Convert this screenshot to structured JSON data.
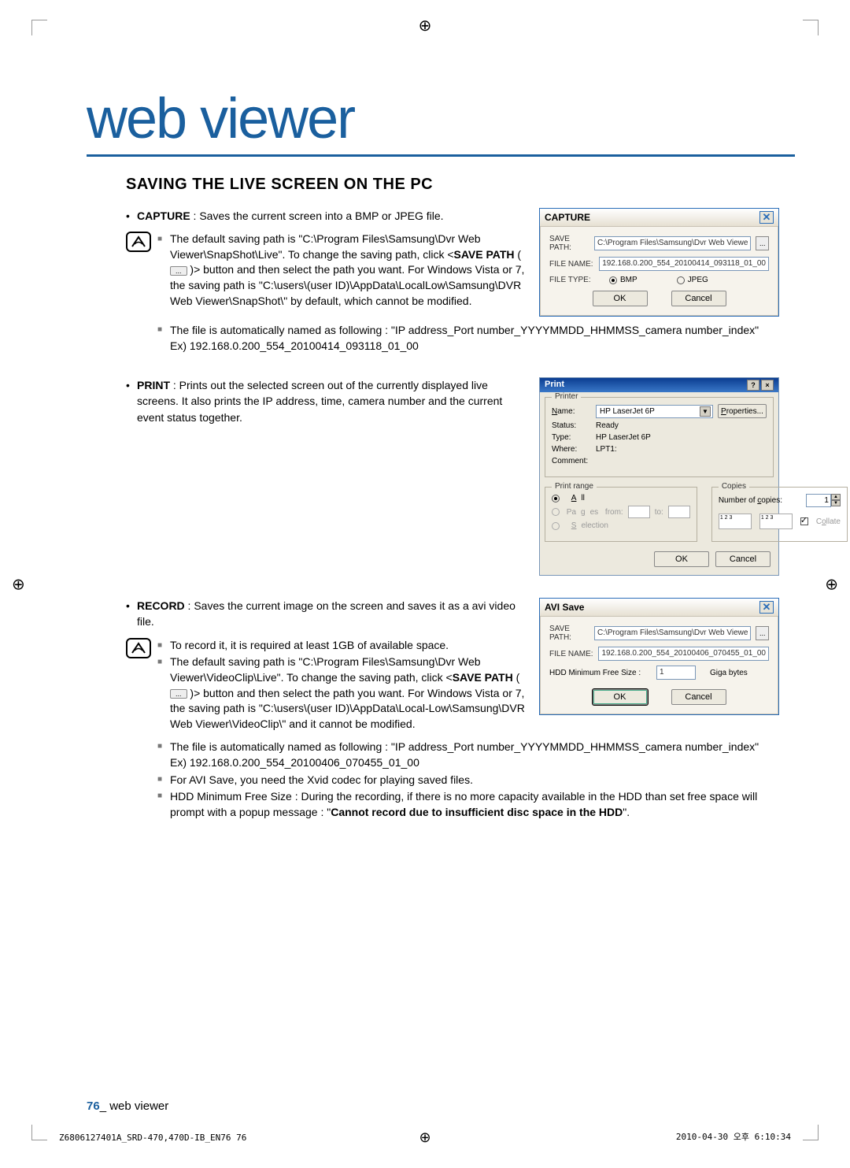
{
  "page": {
    "main_title": "web viewer",
    "section_title": "SAVING THE LIVE SCREEN ON THE PC",
    "footer_num": "76",
    "footer_suffix": "_",
    "footer_text": "web viewer",
    "meta_left": "Z6806127401A_SRD-470,470D-IB_EN76   76",
    "meta_right": "2010-04-30   오후 6:10:34"
  },
  "capture": {
    "bullet_label": "CAPTURE",
    "bullet_text": " : Saves the current screen into a BMP or JPEG file.",
    "note1_a": "The default saving path is \"C:\\Program Files\\Samsung\\Dvr Web Viewer\\SnapShot\\Live\". To change the saving path, click <",
    "note1_bold": "SAVE PATH",
    "note1_b": " ( ",
    "note1_btn": "...",
    "note1_c": " )> button and then select the path you want. For Windows Vista or 7, the saving path is \"C:\\users\\(user ID)\\AppData\\LocalLow\\Samsung\\DVR Web Viewer\\SnapShot\\\" by default, which cannot be modified.",
    "note2": "The file is automatically named as following : \"IP address_Port number_YYYYMMDD_HHMMSS_camera number_index\"",
    "note2_ex": "Ex) 192.168.0.200_554_20100414_093118_01_00",
    "dialog": {
      "title": "CAPTURE",
      "save_path_lbl": "SAVE PATH:",
      "save_path_val": "C:\\Program Files\\Samsung\\Dvr Web Viewe",
      "file_name_lbl": "FILE NAME:",
      "file_name_val": "192.168.0.200_554_20100414_093118_01_00",
      "file_type_lbl": "FILE TYPE:",
      "radio_bmp": "BMP",
      "radio_jpeg": "JPEG",
      "ok": "OK",
      "cancel": "Cancel"
    }
  },
  "print": {
    "bullet_label": "PRINT",
    "bullet_text": " : Prints out the selected screen out of the currently displayed live screens. It also prints the IP address, time, camera number and the current event status together.",
    "dialog": {
      "title": "Print",
      "printer_legend": "Printer",
      "name_lbl": "Name:",
      "name_val": "HP LaserJet 6P",
      "properties": "Properties...",
      "status_lbl": "Status:",
      "status_val": "Ready",
      "type_lbl": "Type:",
      "type_val": "HP LaserJet 6P",
      "where_lbl": "Where:",
      "where_val": "LPT1:",
      "comment_lbl": "Comment:",
      "range_legend": "Print range",
      "all": "All",
      "pages": "Pages",
      "from": "from:",
      "to": "to:",
      "selection": "Selection",
      "copies_legend": "Copies",
      "num_copies": "Number of copies:",
      "copies_val": "1",
      "collate_lbl": "Collate",
      "ok": "OK",
      "cancel": "Cancel"
    }
  },
  "record": {
    "bullet_label": "RECORD",
    "bullet_text": " : Saves the current image on the screen and saves it as a avi video file.",
    "note1": "To record it, it is required at least 1GB of available space.",
    "note2_a": "The default saving path is \"C:\\Program Files\\Samsung\\Dvr Web Viewer\\VideoClip\\Live\". To change the saving path, click <",
    "note2_bold": "SAVE PATH",
    "note2_b": " ( ",
    "note2_btn": "...",
    "note2_c": " )> button and then select the path you want. For Windows Vista or 7, the saving path is \"C:\\users\\(user ID)\\AppData\\Local-Low\\Samsung\\DVR Web Viewer\\VideoClip\\\" and it cannot be modified.",
    "note3": "The file is automatically named as following : \"IP address_Port number_YYYYMMDD_HHMMSS_camera number_index\"",
    "note3_ex": "Ex) 192.168.0.200_554_20100406_070455_01_00",
    "note4": "For AVI Save, you need the Xvid codec for playing saved files.",
    "note5_a": "HDD Minimum Free Size : During the recording, if there is no more capacity available in the HDD than set free space will prompt with a popup message : \"",
    "note5_bold": "Cannot record due to insufficient disc space in the HDD",
    "note5_b": "\".",
    "dialog": {
      "title": "AVI Save",
      "save_path_lbl": "SAVE PATH:",
      "save_path_val": "C:\\Program Files\\Samsung\\Dvr Web Viewe",
      "file_name_lbl": "FILE NAME:",
      "file_name_val": "192.168.0.200_554_20100406_070455_01_00",
      "hdd_lbl": "HDD Minimum Free Size :",
      "hdd_val": "1",
      "hdd_unit": "Giga bytes",
      "ok": "OK",
      "cancel": "Cancel"
    }
  }
}
